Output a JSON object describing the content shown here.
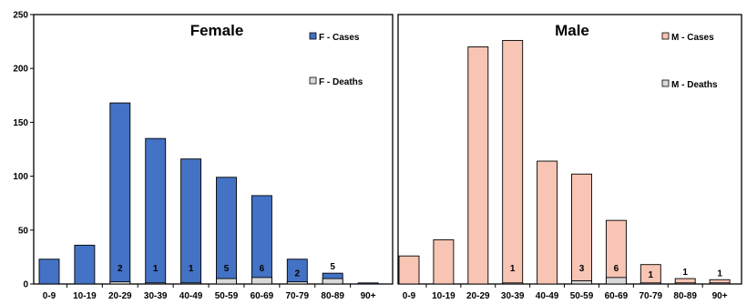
{
  "chart_data": [
    {
      "type": "bar",
      "title": "Female",
      "categories": [
        "0-9",
        "10-19",
        "20-29",
        "30-39",
        "40-49",
        "50-59",
        "60-69",
        "70-79",
        "80-89",
        "90+"
      ],
      "series": [
        {
          "name": "F - Cases",
          "values": [
            23,
            36,
            168,
            135,
            116,
            99,
            82,
            23,
            10,
            1
          ],
          "color": "#4472c4"
        },
        {
          "name": "F - Deaths",
          "values": [
            0,
            0,
            2,
            1,
            1,
            5,
            6,
            2,
            5,
            0
          ],
          "color": "#d9d9d9"
        }
      ],
      "death_labels": [
        "",
        "",
        "2",
        "1",
        "1",
        "5",
        "6",
        "2",
        "5",
        ""
      ],
      "ylim": [
        0,
        250
      ],
      "yticks": [
        "0",
        "50",
        "100",
        "150",
        "200",
        "250"
      ],
      "xlabel": "",
      "ylabel": "",
      "legend": "top-right",
      "grid": false
    },
    {
      "type": "bar",
      "title": "Male",
      "categories": [
        "0-9",
        "10-19",
        "20-29",
        "30-39",
        "40-49",
        "50-59",
        "60-69",
        "70-79",
        "80-89",
        "90+"
      ],
      "series": [
        {
          "name": "M - Cases",
          "values": [
            26,
            41,
            220,
            226,
            114,
            102,
            59,
            18,
            5,
            4
          ],
          "color": "#f8c4b4"
        },
        {
          "name": "M - Deaths",
          "values": [
            0,
            0,
            0,
            1,
            0,
            3,
            6,
            1,
            1,
            1
          ],
          "color": "#d9d9d9"
        }
      ],
      "death_labels": [
        "",
        "",
        "",
        "1",
        "",
        "3",
        "6",
        "1",
        "1",
        "1"
      ],
      "ylim": [
        0,
        250
      ],
      "xlabel": "",
      "ylabel": "",
      "legend": "top-right",
      "grid": false
    }
  ]
}
